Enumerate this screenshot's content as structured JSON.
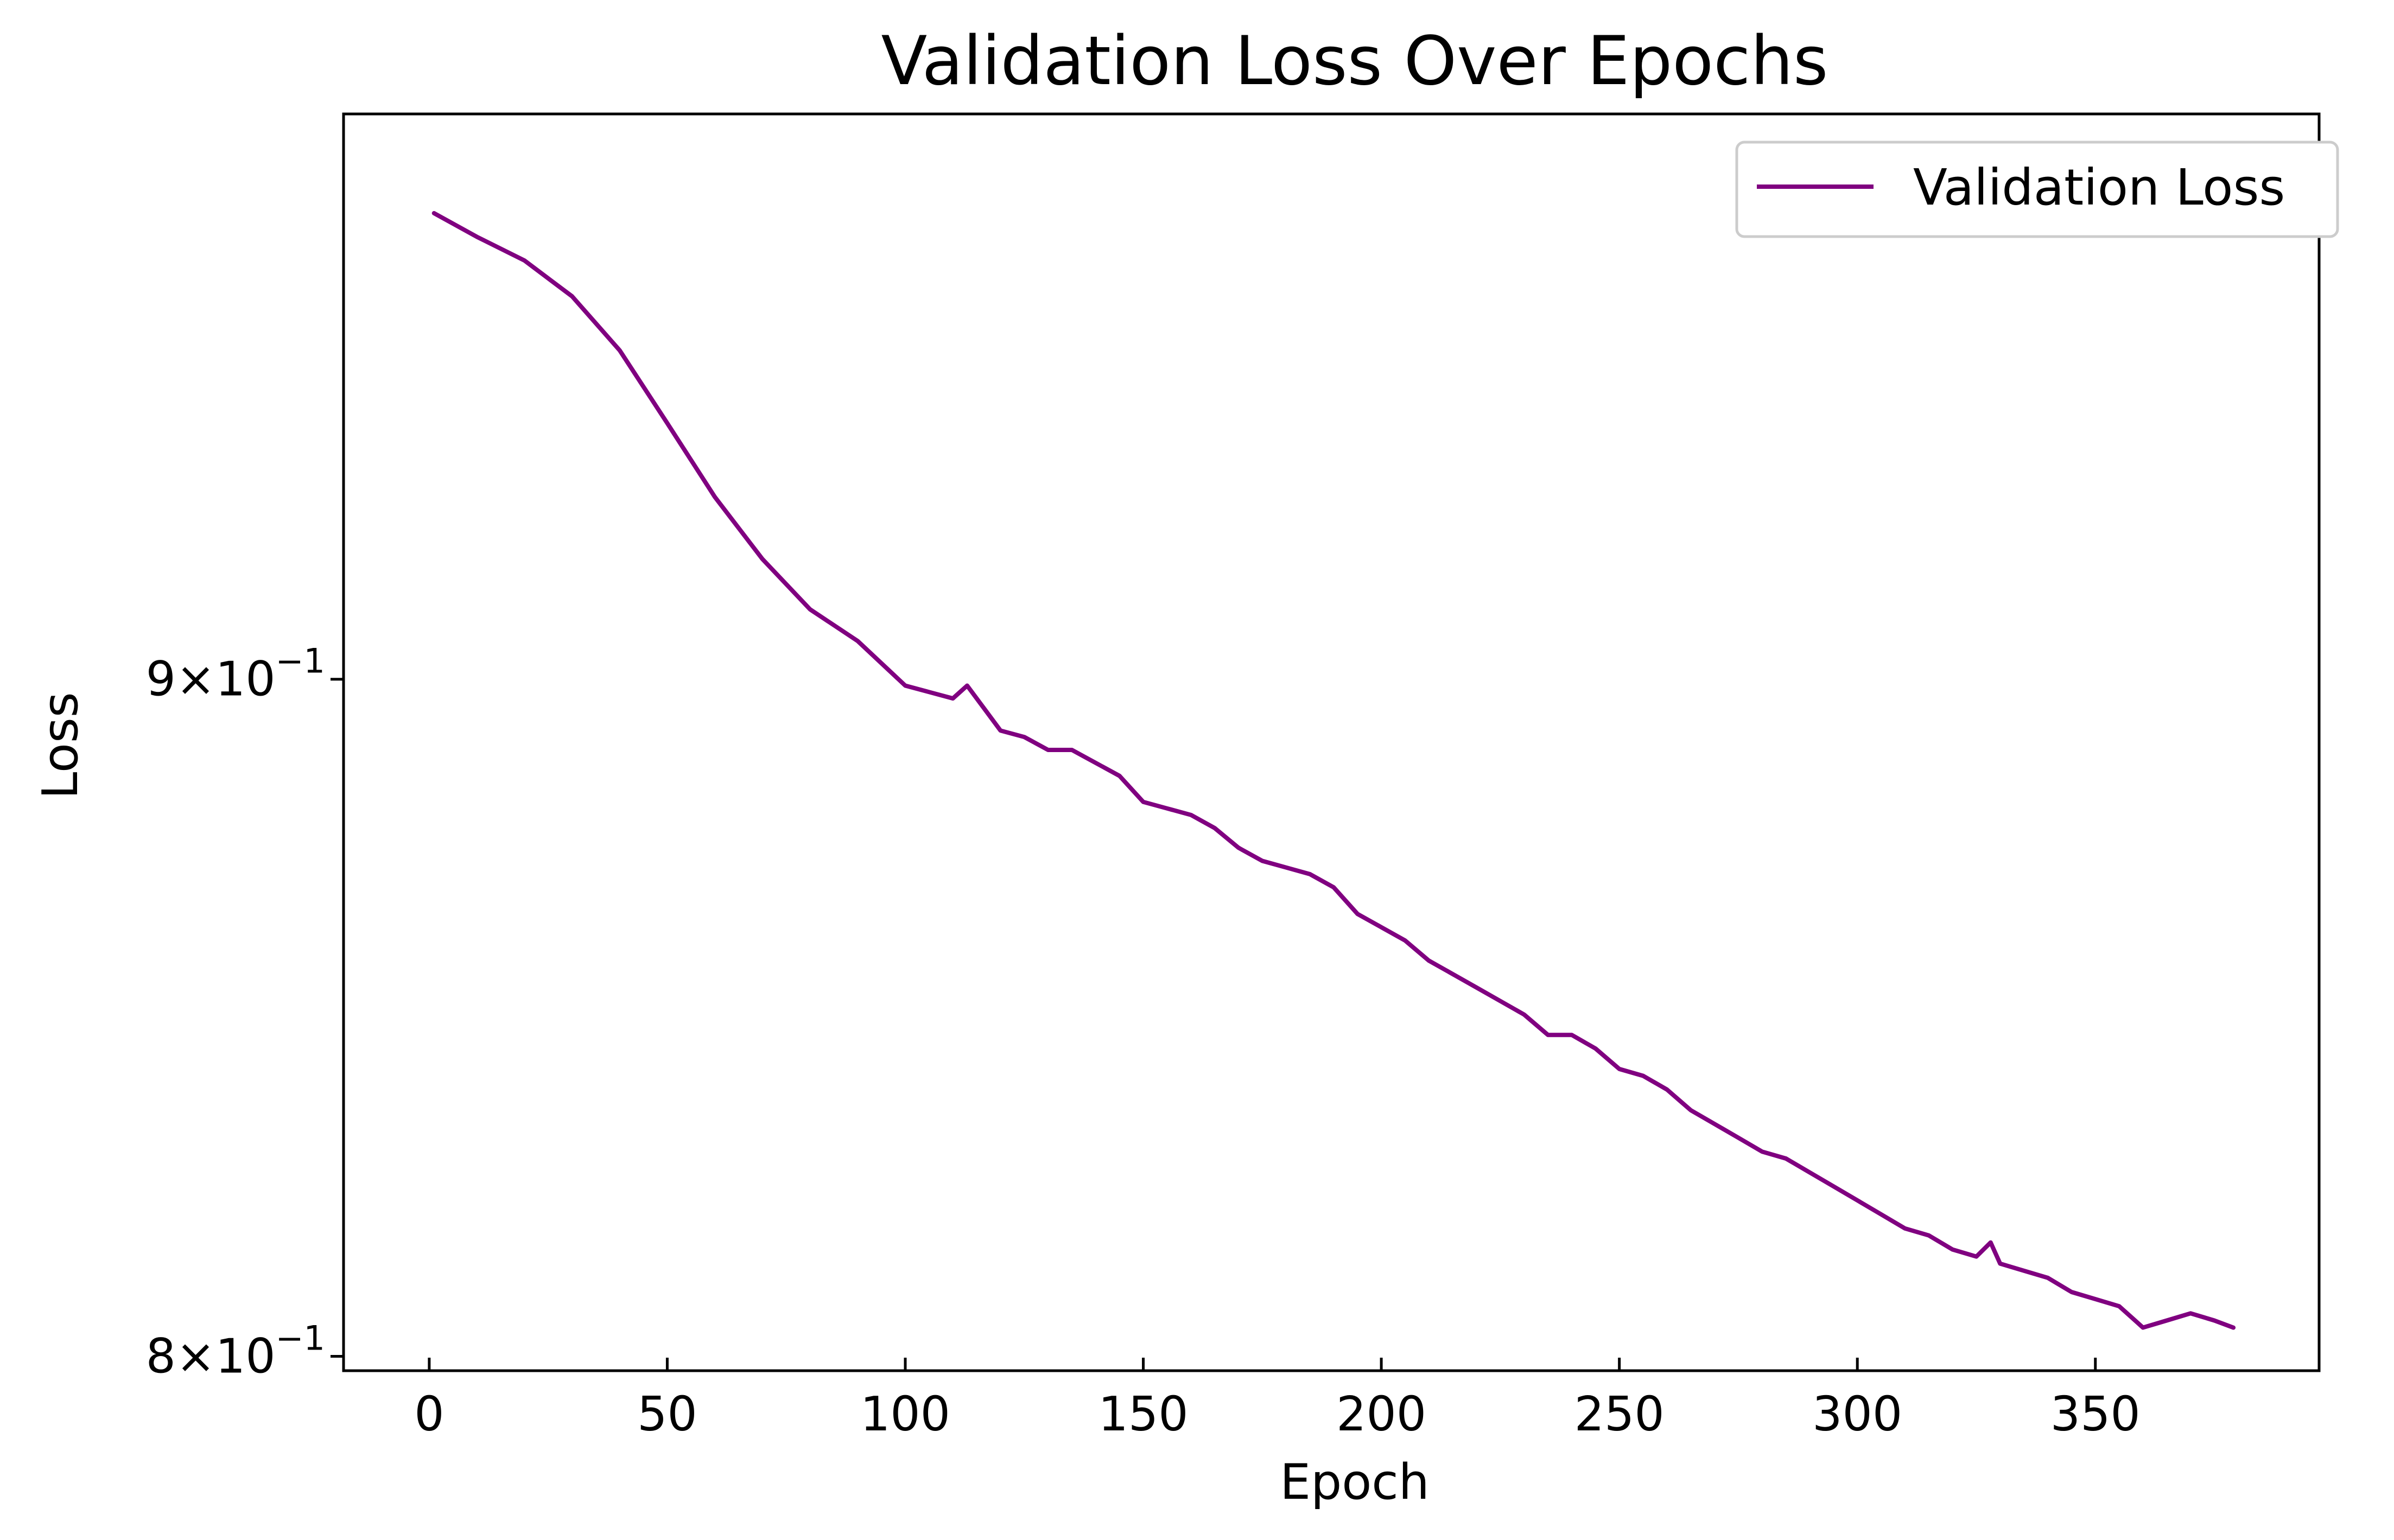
{
  "chart_data": {
    "type": "line",
    "title": "Validation Loss Over Epochs",
    "xlabel": "Epoch",
    "ylabel": "Loss",
    "xlim": [
      -18,
      397
    ],
    "ylim": [
      0.798,
      0.993
    ],
    "y_scale": "log",
    "x_ticks": [
      {
        "value": 0,
        "label": "0"
      },
      {
        "value": 50,
        "label": "50"
      },
      {
        "value": 100,
        "label": "100"
      },
      {
        "value": 150,
        "label": "150"
      },
      {
        "value": 200,
        "label": "200"
      },
      {
        "value": 250,
        "label": "250"
      },
      {
        "value": 300,
        "label": "300"
      },
      {
        "value": 350,
        "label": "350"
      }
    ],
    "y_ticks": [
      {
        "value": 0.8,
        "mantissa": "8",
        "exponent": "−1"
      },
      {
        "value": 0.9,
        "mantissa": "9",
        "exponent": "−1"
      }
    ],
    "legend": {
      "position": "top-right"
    },
    "grid": false,
    "series": [
      {
        "name": "Validation Loss",
        "color": "#800080",
        "x": [
          1,
          10,
          20,
          30,
          40,
          50,
          60,
          70,
          80,
          90,
          100,
          105,
          110,
          113,
          117,
          120,
          125,
          130,
          135,
          140,
          145,
          150,
          155,
          160,
          165,
          170,
          175,
          180,
          185,
          190,
          195,
          200,
          205,
          210,
          215,
          220,
          225,
          230,
          235,
          240,
          245,
          250,
          255,
          260,
          265,
          270,
          275,
          280,
          285,
          290,
          295,
          300,
          305,
          310,
          315,
          320,
          325,
          328,
          330,
          335,
          340,
          345,
          350,
          355,
          360,
          365,
          370,
          375,
          379
        ],
        "y": [
          0.976,
          0.972,
          0.968,
          0.962,
          0.953,
          0.941,
          0.929,
          0.919,
          0.911,
          0.906,
          0.899,
          0.898,
          0.897,
          0.899,
          0.895,
          0.892,
          0.891,
          0.889,
          0.889,
          0.887,
          0.885,
          0.881,
          0.88,
          0.879,
          0.877,
          0.874,
          0.872,
          0.871,
          0.87,
          0.868,
          0.864,
          0.862,
          0.86,
          0.857,
          0.855,
          0.853,
          0.851,
          0.849,
          0.846,
          0.846,
          0.844,
          0.841,
          0.84,
          0.838,
          0.835,
          0.833,
          0.831,
          0.829,
          0.828,
          0.826,
          0.824,
          0.822,
          0.82,
          0.818,
          0.817,
          0.815,
          0.814,
          0.816,
          0.813,
          0.812,
          0.811,
          0.809,
          0.808,
          0.807,
          0.804,
          0.805,
          0.806,
          0.805,
          0.804
        ]
      }
    ]
  }
}
